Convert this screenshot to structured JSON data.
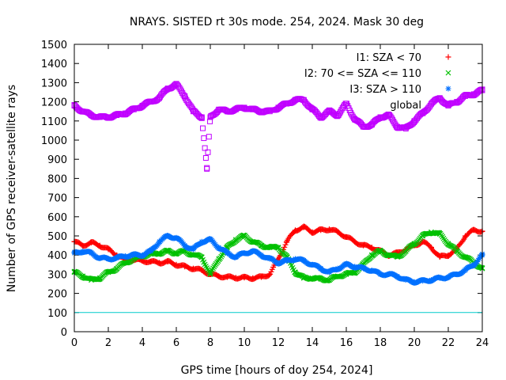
{
  "chart_data": {
    "type": "scatter",
    "title": "NRAYS. SISTED rt 30s mode. 254, 2024. Mask 30 deg",
    "xlabel": "GPS time [hours of doy 254, 2024]",
    "ylabel": "Number of GPS receiver-satellite rays",
    "xlim": [
      0,
      24
    ],
    "ylim": [
      0,
      1500
    ],
    "xticks": [
      "0",
      "2",
      "4",
      "6",
      "8",
      "10",
      "12",
      "14",
      "16",
      "18",
      "20",
      "22",
      "24"
    ],
    "yticks": [
      "0",
      "100",
      "200",
      "300",
      "400",
      "500",
      "600",
      "700",
      "800",
      "900",
      "1000",
      "1100",
      "1200",
      "1300",
      "1400",
      "1500"
    ],
    "reference_line": {
      "y": 100,
      "color": "#00cccc"
    },
    "legend_position": "top-right",
    "series": [
      {
        "name": "I1: SZA < 70",
        "marker": "+",
        "color": "#ff0000",
        "x": [
          0,
          0.5,
          1,
          1.5,
          2,
          2.5,
          3,
          3.5,
          4,
          4.5,
          5,
          5.5,
          6,
          6.5,
          7,
          7.5,
          8,
          8.5,
          9,
          9.5,
          10,
          10.5,
          11,
          11.5,
          12,
          12.5,
          13,
          13.5,
          14,
          14.5,
          15,
          15.5,
          16,
          16.5,
          17,
          17.5,
          18,
          18.5,
          19,
          19.5,
          20,
          20.5,
          21,
          21.5,
          22,
          22.5,
          23,
          23.5,
          24
        ],
        "values": [
          470,
          450,
          465,
          450,
          430,
          400,
          375,
          375,
          370,
          365,
          360,
          365,
          350,
          340,
          330,
          320,
          300,
          290,
          285,
          282,
          282,
          280,
          285,
          300,
          380,
          470,
          530,
          545,
          520,
          530,
          535,
          520,
          495,
          470,
          450,
          440,
          420,
          400,
          410,
          430,
          450,
          470,
          440,
          390,
          400,
          430,
          500,
          530,
          525
        ]
      },
      {
        "name": "I2: 70 <= SZA <= 110",
        "marker": "x",
        "color": "#00c000",
        "x": [
          0,
          0.5,
          1,
          1.5,
          2,
          2.5,
          3,
          3.5,
          4,
          4.5,
          5,
          5.5,
          6,
          6.5,
          7,
          7.5,
          8,
          8.5,
          9,
          9.5,
          10,
          10.5,
          11,
          11.5,
          12,
          12.5,
          13,
          13.5,
          14,
          14.5,
          15,
          15.5,
          16,
          16.5,
          17,
          17.5,
          18,
          18.5,
          19,
          19.5,
          20,
          20.5,
          21,
          21.5,
          22,
          22.5,
          23,
          23.5,
          24
        ],
        "values": [
          310,
          290,
          270,
          280,
          310,
          330,
          360,
          380,
          395,
          405,
          410,
          420,
          410,
          420,
          400,
          390,
          300,
          380,
          440,
          480,
          500,
          470,
          450,
          440,
          440,
          390,
          310,
          280,
          280,
          275,
          270,
          290,
          300,
          310,
          350,
          400,
          420,
          400,
          390,
          420,
          460,
          500,
          520,
          510,
          460,
          420,
          390,
          360,
          330
        ]
      },
      {
        "name": "I3: SZA > 110",
        "marker": "*",
        "color": "#0070ff",
        "x": [
          0,
          0.5,
          1,
          1.5,
          2,
          2.5,
          3,
          3.5,
          4,
          4.5,
          5,
          5.5,
          6,
          6.5,
          7,
          7.5,
          8,
          8.5,
          9,
          9.5,
          10,
          10.5,
          11,
          11.5,
          12,
          12.5,
          13,
          13.5,
          14,
          14.5,
          15,
          15.5,
          16,
          16.5,
          17,
          17.5,
          18,
          18.5,
          19,
          19.5,
          20,
          20.5,
          21,
          21.5,
          22,
          22.5,
          23,
          23.5,
          24
        ],
        "values": [
          410,
          420,
          410,
          385,
          380,
          385,
          395,
          400,
          400,
          420,
          470,
          500,
          490,
          450,
          430,
          470,
          480,
          440,
          410,
          390,
          410,
          420,
          400,
          380,
          360,
          370,
          380,
          370,
          350,
          330,
          310,
          330,
          350,
          340,
          330,
          320,
          300,
          300,
          290,
          270,
          260,
          265,
          270,
          280,
          285,
          300,
          320,
          350,
          400
        ]
      },
      {
        "name": "global",
        "marker": "square",
        "color": "#c000ff",
        "x": [
          0,
          0.5,
          1,
          1.5,
          2,
          2.5,
          3,
          3.5,
          4,
          4.5,
          5,
          5.5,
          6,
          6.5,
          7,
          7.5,
          7.8,
          8,
          8.5,
          9,
          9.5,
          10,
          10.5,
          11,
          11.5,
          12,
          12.5,
          13,
          13.5,
          14,
          14.5,
          15,
          15.5,
          16,
          16.5,
          17,
          17.5,
          18,
          18.5,
          19,
          19.5,
          20,
          20.5,
          21,
          21.5,
          22,
          22.5,
          23,
          23.5,
          24
        ],
        "values": [
          1180,
          1150,
          1130,
          1120,
          1120,
          1130,
          1140,
          1160,
          1180,
          1200,
          1220,
          1270,
          1290,
          1230,
          1150,
          1120,
          850,
          1120,
          1160,
          1150,
          1160,
          1170,
          1160,
          1150,
          1150,
          1170,
          1190,
          1210,
          1210,
          1160,
          1120,
          1150,
          1130,
          1190,
          1110,
          1070,
          1080,
          1120,
          1130,
          1070,
          1060,
          1100,
          1140,
          1190,
          1220,
          1180,
          1200,
          1230,
          1240,
          1260
        ]
      }
    ]
  }
}
